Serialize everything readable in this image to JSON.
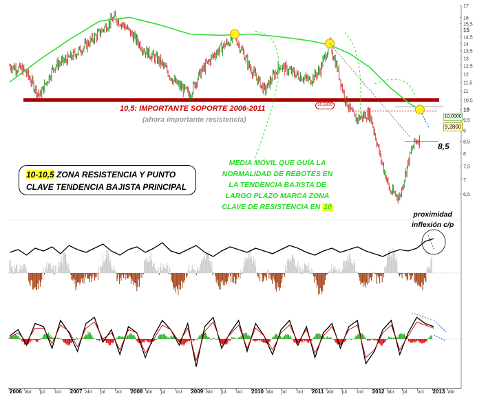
{
  "chart_data": [
    {
      "type": "candlestick",
      "panel": "price",
      "title": "",
      "x_tick_labels": [
        "2006",
        "abr",
        "jul",
        "oct",
        "2007",
        "abr",
        "jul",
        "oct",
        "2008",
        "abr",
        "jul",
        "oct",
        "2009",
        "abr",
        "jul",
        "oct",
        "2010",
        "abr",
        "jul",
        "oct",
        "2011",
        "abr",
        "jul",
        "oct",
        "2012",
        "abr",
        "jul",
        "oct",
        "2013",
        "abr"
      ],
      "x_year_labels": [
        "2006",
        "2007",
        "2008",
        "2009",
        "2010",
        "2011",
        "2012",
        "2013"
      ],
      "y_tick_labels": [
        "17",
        "16",
        "15,5",
        "15",
        "14,5",
        "14",
        "13,5",
        "13",
        "12,5",
        "12",
        "11,5",
        "11",
        "10,5",
        "10",
        "9,5",
        "9",
        "8,5",
        "8",
        "7,5",
        "7",
        "6,5"
      ],
      "ylim": [
        6,
        17
      ],
      "y_scale": "log",
      "price_series": {
        "name": "",
        "x": [
          "2006-01",
          "2006-04",
          "2006-07",
          "2006-10",
          "2007-01",
          "2007-04",
          "2007-07",
          "2007-10",
          "2007-12",
          "2008-04",
          "2008-07",
          "2008-10",
          "2009-01",
          "2009-03",
          "2009-06",
          "2009-10",
          "2010-01",
          "2010-04",
          "2010-07",
          "2010-10",
          "2011-01",
          "2011-03",
          "2011-05",
          "2011-08",
          "2011-10",
          "2012-01",
          "2012-03",
          "2012-05",
          "2012-07",
          "2012-09",
          "2012-10",
          "2012-11"
        ],
        "y": [
          12.5,
          12.2,
          10.7,
          12.5,
          13.0,
          13.8,
          14.8,
          16.0,
          15.3,
          13.5,
          12.8,
          11.5,
          10.8,
          12.0,
          13.3,
          14.5,
          12.4,
          11.0,
          12.5,
          12.0,
          11.6,
          12.2,
          14.0,
          10.6,
          9.5,
          9.8,
          7.9,
          6.6,
          6.4,
          7.9,
          8.5,
          8.6
        ]
      },
      "moving_average": {
        "name": "",
        "color": "#33dd33",
        "x": [
          "2006-01",
          "2006-07",
          "2007-01",
          "2007-07",
          "2008-01",
          "2008-07",
          "2009-01",
          "2009-07",
          "2010-01",
          "2010-07",
          "2011-01",
          "2011-05",
          "2011-09",
          "2012-01",
          "2012-05",
          "2012-09",
          "2012-11"
        ],
        "y": [
          11.5,
          12.9,
          14.3,
          15.7,
          16.0,
          15.4,
          14.7,
          14.6,
          14.7,
          14.5,
          14.2,
          13.9,
          13.3,
          12.4,
          11.2,
          10.3,
          10.0
        ]
      },
      "support_line": {
        "y": 10.5,
        "color": "#aa0000"
      },
      "horizontal_levels": [
        10.0,
        8.5
      ],
      "highlight_points": [
        {
          "x": "2009-10",
          "y": 14.7
        },
        {
          "x": "2011-05",
          "y": 14.0
        },
        {
          "x": "2012-11",
          "y": 10.0
        }
      ],
      "last_price_label": "9,2800",
      "upper_box_label": "10,0000",
      "red_box_label": "10,5000",
      "annotations": {
        "support": "10,5: IMPORTANTE SOPORTE 2006-2011",
        "resistance": "(ahora importante resistencia)",
        "ma_note_lines": [
          "MEDIA MÓVIL QUE GUÍA LA",
          "NORMALIDAD DE REBOTES EN",
          "LA TENDENCIA BAJISTA DE",
          "LARGO PLAZO MARCA ZONA",
          "CLAVE DE RESISTENCIA EN"
        ],
        "ma_note_highlight": "10",
        "zone_highlight": "10-10,5",
        "zone_line1_rest": " ZONA RESISTENCIA Y PUNTO",
        "zone_line2": "CLAVE TENDENCIA BAJISTA PRINCIPAL",
        "level_85": "8,5",
        "proximity_line1": "proximidad",
        "proximity_line2": "inflexión c/p"
      }
    },
    {
      "type": "line",
      "panel": "oscillator-1",
      "title": "",
      "series": [
        {
          "name": "",
          "color": "#000000",
          "values": [
            0.45,
            0.55,
            0.35,
            0.6,
            0.5,
            0.65,
            0.4,
            0.7,
            0.55,
            0.45,
            0.6,
            0.75,
            0.5,
            0.35,
            0.55,
            0.65,
            0.45,
            0.6,
            0.8,
            0.5,
            0.4,
            0.55,
            0.7,
            0.45,
            0.3,
            0.5,
            0.65,
            0.55,
            0.45,
            0.6,
            0.5,
            0.4,
            0.55,
            0.7,
            0.6,
            0.45,
            0.35,
            0.5,
            0.6,
            0.45,
            0.55,
            0.65,
            0.5,
            0.4,
            0.3,
            0.45,
            0.55,
            0.5,
            0.6,
            0.85,
            0.95
          ]
        }
      ],
      "histogram": {
        "positive_color": "#c8c8c8",
        "negative_color": "#a0380c"
      }
    },
    {
      "type": "line",
      "panel": "oscillator-2",
      "title": "",
      "series": [
        {
          "name": "",
          "color": "#000000",
          "values": [
            0.1,
            0.3,
            -0.2,
            0.5,
            0.4,
            -0.3,
            0.6,
            0.2,
            -0.4,
            0.5,
            0.7,
            -0.1,
            0.3,
            -0.5,
            0.4,
            0.2,
            -0.6,
            0.1,
            0.6,
            0.3,
            -0.2,
            0.5,
            -0.9,
            0.4,
            0.7,
            -0.3,
            0.2,
            0.6,
            -0.4,
            0.5,
            0.1,
            -0.5,
            0.3,
            0.6,
            -0.2,
            0.4,
            -0.6,
            0.2,
            0.5,
            -0.3,
            0.4,
            0.6,
            -0.8,
            -0.4,
            0.3,
            0.6,
            -0.5,
            0.2,
            0.7,
            0.5,
            0.4
          ]
        },
        {
          "name": "",
          "color": "#cc0000",
          "values": [
            0.05,
            0.2,
            -0.1,
            0.35,
            0.35,
            -0.15,
            0.45,
            0.25,
            -0.25,
            0.35,
            0.55,
            0.0,
            0.2,
            -0.35,
            0.3,
            0.2,
            -0.45,
            0.0,
            0.45,
            0.3,
            -0.1,
            0.35,
            -0.7,
            0.25,
            0.55,
            -0.15,
            0.15,
            0.45,
            -0.3,
            0.35,
            0.1,
            -0.35,
            0.2,
            0.45,
            -0.1,
            0.3,
            -0.45,
            0.1,
            0.4,
            -0.2,
            0.3,
            0.45,
            -0.6,
            -0.35,
            0.2,
            0.45,
            -0.35,
            0.1,
            0.55,
            0.45,
            0.35
          ]
        }
      ],
      "histogram": {
        "positive_color": "#22aa22",
        "negative_color": "#dd0000"
      }
    }
  ]
}
